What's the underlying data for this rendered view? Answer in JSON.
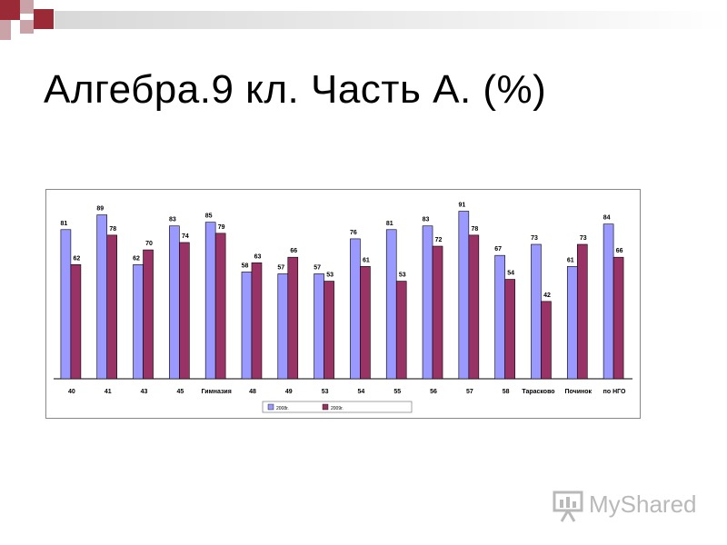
{
  "slide": {
    "title": "Алгебра.9 кл. Часть А. (%)"
  },
  "watermark": {
    "text": "MyShared",
    "icon": "presentation-board-icon"
  },
  "colors": {
    "series1": "#9999ff",
    "series2": "#993366",
    "accent": "#9b2a37",
    "accent_light": "#c9a3a8"
  },
  "chart_data": {
    "type": "bar",
    "title": "",
    "xlabel": "",
    "ylabel": "",
    "ylim": [
      0,
      100
    ],
    "grid": false,
    "legend_position": "bottom",
    "categories": [
      "40",
      "41",
      "43",
      "45",
      "Гимназия",
      "48",
      "49",
      "53",
      "54",
      "55",
      "56",
      "57",
      "58",
      "Тарасково",
      "Починок",
      "по НГО"
    ],
    "series": [
      {
        "name": "2008г.",
        "color": "#9999ff",
        "values": [
          81,
          89,
          62,
          83,
          85,
          58,
          57,
          57,
          76,
          81,
          83,
          91,
          67,
          73,
          61,
          84
        ]
      },
      {
        "name": "2009г.",
        "color": "#993366",
        "values": [
          62,
          78,
          70,
          74,
          79,
          63,
          66,
          53,
          61,
          53,
          72,
          78,
          54,
          42,
          73,
          66
        ]
      }
    ]
  }
}
